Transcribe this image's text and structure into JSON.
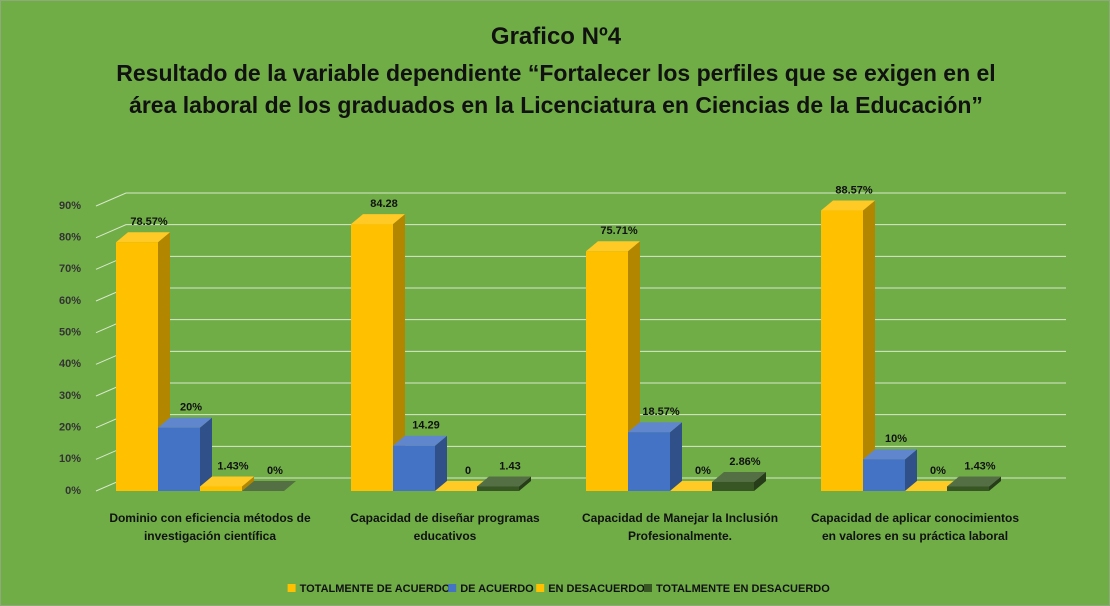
{
  "chart_data": {
    "type": "bar3d",
    "title": "Grafico Nº4",
    "subtitle": "Resultado de la variable dependiente “Fortalecer los perfiles que se exigen en el área laboral de los graduados en la Licenciatura en Ciencias de la Educación”",
    "categories": [
      "Dominio con eficiencia métodos de investigación científica",
      "Capacidad de diseñar programas educativos",
      "Capacidad de Manejar la Inclusión Profesionalmente.",
      "Capacidad de aplicar conocimientos en valores en su práctica laboral"
    ],
    "series": [
      {
        "name": "TOTALMENTE DE ACUERDO",
        "color": "#ffc000",
        "values": [
          78.57,
          84.28,
          75.71,
          88.57
        ],
        "value_labels": [
          "78.57%",
          "84.28",
          "75.71%",
          "88.57%"
        ]
      },
      {
        "name": "DE ACUERDO",
        "color": "#4472c4",
        "values": [
          20,
          14.29,
          18.57,
          10
        ],
        "value_labels": [
          "20%",
          "14.29",
          "18.57%",
          "10%"
        ]
      },
      {
        "name": "EN DESACUERDO",
        "color": "#ffc000",
        "values": [
          1.43,
          0,
          0,
          0
        ],
        "value_labels": [
          "1.43%",
          "0",
          "0%",
          "0%"
        ]
      },
      {
        "name": "TOTALMENTE EN DESACUERDO",
        "color": "#375623",
        "values": [
          0,
          1.43,
          2.86,
          1.43
        ],
        "value_labels": [
          "0%",
          "1.43",
          "2.86%",
          "1.43%"
        ]
      }
    ],
    "ylim": [
      0,
      90
    ],
    "yticks": [
      {
        "value": 0,
        "label": "0%"
      },
      {
        "value": 10,
        "label": "10%"
      },
      {
        "value": 20,
        "label": "20%"
      },
      {
        "value": 30,
        "label": "30%"
      },
      {
        "value": 40,
        "label": "40%"
      },
      {
        "value": 50,
        "label": "50%"
      },
      {
        "value": 60,
        "label": "60%"
      },
      {
        "value": 70,
        "label": "70%"
      },
      {
        "value": 80,
        "label": "80%"
      },
      {
        "value": 90,
        "label": "90%"
      }
    ],
    "grid": true,
    "legend": "bottom"
  }
}
